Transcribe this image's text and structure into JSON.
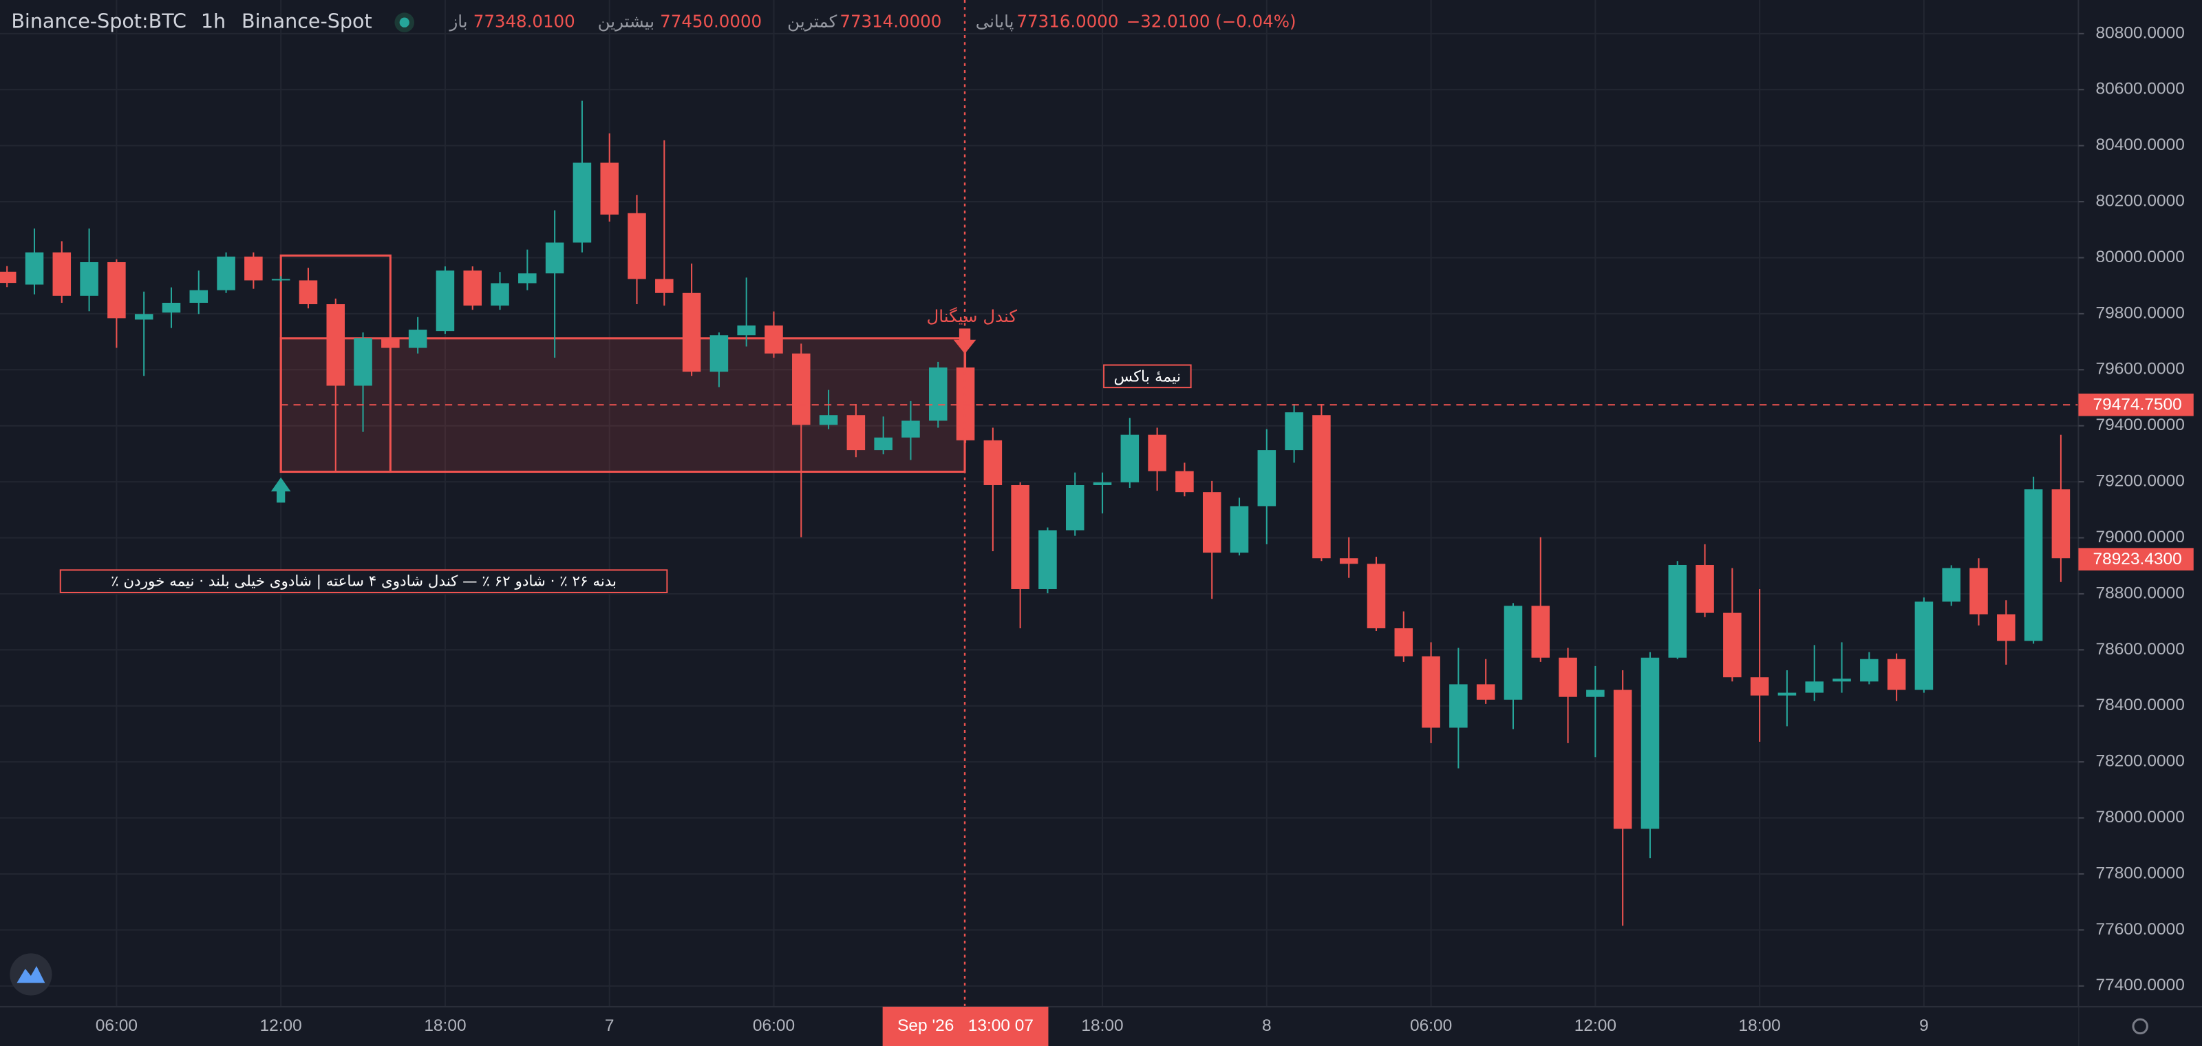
{
  "header": {
    "symbol": "Binance-Spot:BTC",
    "interval": "1h",
    "exchange": "Binance-Spot",
    "open_label": "باز",
    "open": "77348.0100",
    "high_label": "بیشترین",
    "high": "77450.0000",
    "low_label": "کمترین",
    "low": "77314.0000",
    "close_label": "پایانی",
    "close": "77316.0000",
    "change": "−32.0100 (−0.04%)"
  },
  "chart_data": {
    "type": "candlestick",
    "up_color": "#26a69a",
    "down_color": "#ef5350",
    "grid": true,
    "open": [
      79950,
      79904,
      80019,
      79864,
      79984,
      79779,
      79804,
      79839,
      79884,
      80004,
      79919,
      79919,
      79834,
      79543,
      79713,
      79678,
      79738,
      79954,
      79829,
      79909,
      79944,
      80054,
      80339,
      80159,
      79924,
      79874,
      79593,
      79723,
      79758,
      79658,
      79403,
      79438,
      79313,
      79358,
      79418,
      79608,
      79348,
      79188,
      78817,
      79027,
      79188,
      79198,
      79368,
      79238,
      79163,
      78947,
      79113,
      79313,
      79438,
      78927,
      78907,
      78677,
      78577,
      78322,
      78477,
      78422,
      78757,
      78572,
      78432,
      78457,
      77961,
      78572,
      78903,
      78732,
      78502,
      78437,
      78447,
      78487,
      78487,
      78567,
      78457,
      78772,
      78892,
      78727,
      78632,
      79173
    ],
    "high": [
      79970,
      80104,
      80059,
      80104,
      79994,
      79879,
      79894,
      79954,
      80019,
      80019,
      79934,
      79964,
      79854,
      79733,
      79728,
      79788,
      79969,
      79969,
      79949,
      80029,
      80169,
      80560,
      80444,
      80224,
      80419,
      79979,
      79733,
      79929,
      79808,
      79693,
      79528,
      79478,
      79433,
      79488,
      79628,
      79668,
      79393,
      79198,
      79037,
      79233,
      79233,
      79428,
      79393,
      79268,
      79203,
      79143,
      79388,
      79478,
      79478,
      79002,
      78932,
      78737,
      78627,
      78607,
      78567,
      78767,
      79002,
      78607,
      78542,
      78527,
      78592,
      78917,
      78977,
      78892,
      78817,
      78527,
      78617,
      78627,
      78592,
      78587,
      78787,
      78902,
      78927,
      78777,
      79218,
      79368
    ],
    "low": [
      79895,
      79869,
      79839,
      79809,
      79678,
      79578,
      79749,
      79799,
      79874,
      79889,
      79914,
      79819,
      79238,
      79378,
      79668,
      79658,
      79728,
      79814,
      79814,
      79884,
      79643,
      80019,
      80129,
      79834,
      79829,
      79578,
      79538,
      79683,
      79643,
      79002,
      79388,
      79288,
      79298,
      79278,
      79393,
      79338,
      78952,
      78677,
      78802,
      79007,
      79087,
      79178,
      79168,
      79148,
      78782,
      78937,
      78977,
      79268,
      78917,
      78857,
      78667,
      78557,
      78267,
      78177,
      78407,
      78317,
      78557,
      78267,
      78217,
      77615,
      77856,
      78567,
      78717,
      78487,
      78272,
      78327,
      78417,
      78447,
      78477,
      78417,
      78447,
      78757,
      78687,
      78547,
      78622,
      78842
    ],
    "close": [
      79910,
      80019,
      79864,
      79984,
      79784,
      79799,
      79839,
      79884,
      80004,
      79919,
      79924,
      79834,
      79543,
      79713,
      79678,
      79743,
      79954,
      79829,
      79909,
      79944,
      80054,
      80339,
      80154,
      79924,
      79874,
      79593,
      79723,
      79758,
      79658,
      79403,
      79438,
      79313,
      79358,
      79418,
      79608,
      79348,
      79188,
      78817,
      79027,
      79188,
      79198,
      79368,
      79238,
      79163,
      78947,
      79113,
      79313,
      79448,
      78927,
      78907,
      78677,
      78577,
      78322,
      78477,
      78422,
      78757,
      78572,
      78432,
      78457,
      77961,
      78572,
      78903,
      78732,
      78502,
      78437,
      78447,
      78487,
      78497,
      78567,
      78457,
      78772,
      78892,
      78727,
      78632,
      79173,
      78927
    ],
    "xticks": [
      {
        "value": 4,
        "label": "06:00"
      },
      {
        "value": 10,
        "label": "12:00"
      },
      {
        "value": 16,
        "label": "18:00"
      },
      {
        "value": 22,
        "label": "7"
      },
      {
        "value": 28,
        "label": "06:00"
      },
      {
        "value": 40,
        "label": "18:00"
      },
      {
        "value": 46,
        "label": "8"
      },
      {
        "value": 52,
        "label": "06:00"
      },
      {
        "value": 58,
        "label": "12:00"
      },
      {
        "value": 64,
        "label": "18:00"
      },
      {
        "value": 70,
        "label": "9"
      }
    ],
    "ylim": [
      77326,
      80920
    ],
    "yticks": [
      {
        "value": 80800,
        "label": "80800.0000"
      },
      {
        "value": 80600,
        "label": "80600.0000"
      },
      {
        "value": 80400,
        "label": "80400.0000"
      },
      {
        "value": 80200,
        "label": "80200.0000"
      },
      {
        "value": 80000,
        "label": "80000.0000"
      },
      {
        "value": 79800,
        "label": "79800.0000"
      },
      {
        "value": 79600,
        "label": "79600.0000"
      },
      {
        "value": 79400,
        "label": "79400.0000"
      },
      {
        "value": 79200,
        "label": "79200.0000"
      },
      {
        "value": 79000,
        "label": "79000.0000"
      },
      {
        "value": 78800,
        "label": "78800.0000"
      },
      {
        "value": 78600,
        "label": "78600.0000"
      },
      {
        "value": 78400,
        "label": "78400.0000"
      },
      {
        "value": 78200,
        "label": "78200.0000"
      },
      {
        "value": 78000,
        "label": "78000.0000"
      },
      {
        "value": 77800,
        "label": "77800.0000"
      },
      {
        "value": 77600,
        "label": "77600.0000"
      },
      {
        "value": 77400,
        "label": "77400.0000"
      }
    ],
    "price_line": {
      "value": 79474.75,
      "label": "79474.7500"
    },
    "last_price": {
      "value": 78923.43,
      "label": "78923.4300"
    },
    "crosshair": {
      "x": 35,
      "label": "Sep '26   13:00 07"
    },
    "annotations": {
      "signal": "کندل سیگنال",
      "half_box": "نیمهٔ باکس",
      "note": "بدنه ۲۶ ٪ · شادو ۶۲ ٪ — کندل شادوی ۴ ساعته | شادوی خیلی بلند · نیمه خوردن ٪"
    }
  }
}
